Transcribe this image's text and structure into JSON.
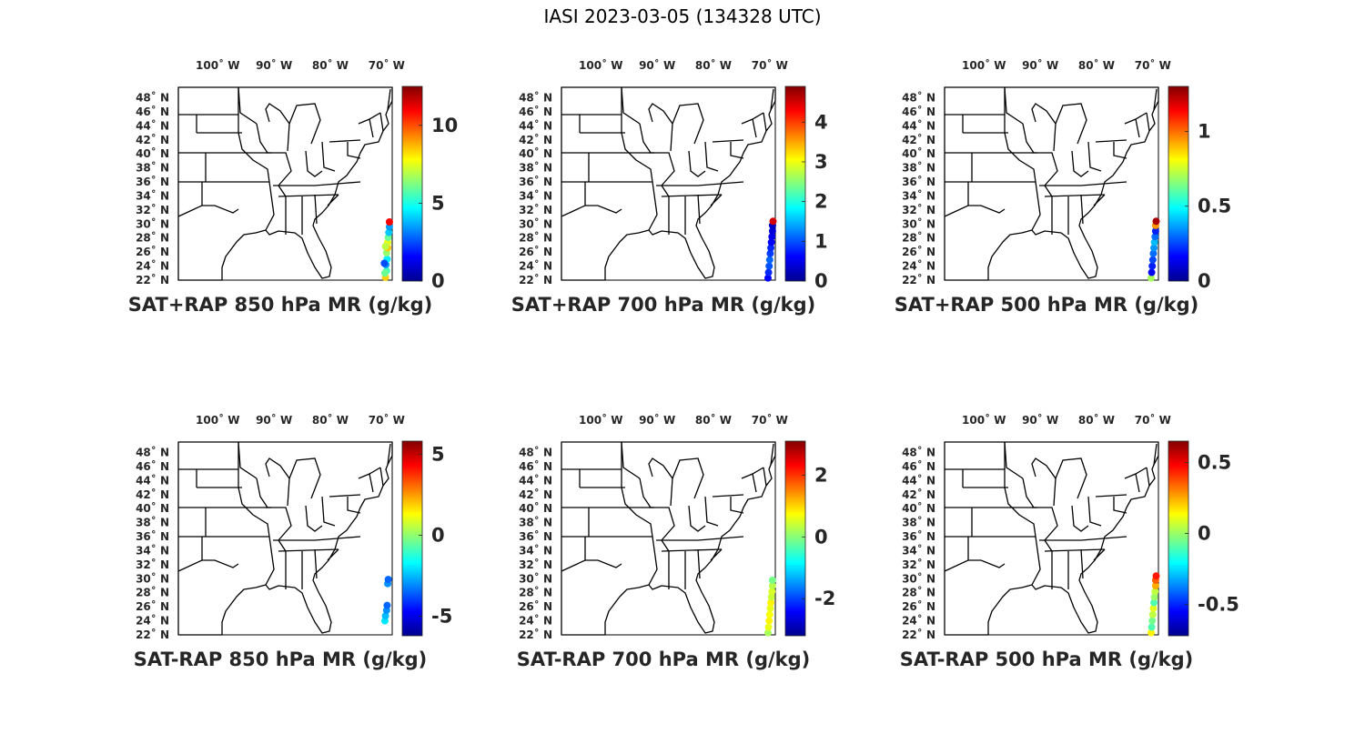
{
  "figure_title": "IASI 2023-03-05 (134328 UTC)",
  "lon_tick_labels": [
    "100˚ W",
    "90˚ W",
    "80˚ W",
    "70˚ W"
  ],
  "lat_tick_labels": [
    "48˚ N",
    "46˚ N",
    "44˚ N",
    "42˚ N",
    "40˚ N",
    "38˚ N",
    "36˚ N",
    "34˚ N",
    "32˚ N",
    "30˚ N",
    "28˚ N",
    "26˚ N",
    "24˚ N",
    "22˚ N"
  ],
  "colormap": "jet",
  "jet_colors": [
    "#00008f",
    "#0000ff",
    "#0080ff",
    "#00ffff",
    "#80ff80",
    "#ffff00",
    "#ff8000",
    "#ff0000",
    "#800000"
  ],
  "map_extent": {
    "lon": [
      -107,
      -69
    ],
    "lat": [
      22,
      49.5
    ]
  },
  "panels": [
    {
      "title": "SAT+RAP 850 hPa MR (g/kg)",
      "colorbar": {
        "clim": [
          0,
          12.5
        ],
        "tick_values": [
          0,
          5,
          10
        ],
        "tick_labels": [
          "0",
          "5",
          "10"
        ]
      },
      "points": [
        [
          -70.2,
          22.4,
          8.4
        ],
        [
          -70.0,
          23.3,
          5.5
        ],
        [
          -70.1,
          24.2,
          3.5
        ],
        [
          -69.9,
          25.0,
          4.5
        ],
        [
          -70.0,
          25.9,
          6.5
        ],
        [
          -69.8,
          26.6,
          8.5
        ],
        [
          -69.8,
          27.4,
          7.5
        ],
        [
          -69.7,
          28.1,
          6.0
        ],
        [
          -69.6,
          28.8,
          4.0
        ],
        [
          -69.5,
          29.6,
          3.5
        ],
        [
          -69.5,
          30.3,
          11.0
        ],
        [
          -70.3,
          23.0,
          6.0
        ],
        [
          -70.4,
          24.4,
          2.5
        ],
        [
          -70.2,
          26.8,
          7.0
        ]
      ]
    },
    {
      "title": "SAT+RAP 700 hPa MR (g/kg)",
      "colorbar": {
        "clim": [
          0,
          4.9
        ],
        "tick_values": [
          0,
          1,
          2,
          3,
          4
        ],
        "tick_labels": [
          "0",
          "1",
          "2",
          "3",
          "4"
        ]
      },
      "points": [
        [
          -70.3,
          22.3,
          0.6
        ],
        [
          -70.2,
          23.1,
          0.8
        ],
        [
          -70.1,
          24.0,
          1.0
        ],
        [
          -70.0,
          24.9,
          1.1
        ],
        [
          -69.9,
          25.8,
          0.9
        ],
        [
          -69.8,
          26.6,
          0.8
        ],
        [
          -69.7,
          27.4,
          0.6
        ],
        [
          -69.6,
          28.2,
          0.5
        ],
        [
          -69.5,
          29.0,
          0.4
        ],
        [
          -69.5,
          29.8,
          0.3
        ],
        [
          -69.4,
          30.4,
          4.5
        ]
      ]
    },
    {
      "title": "SAT+RAP 500 hPa MR (g/kg)",
      "colorbar": {
        "clim": [
          0,
          1.3
        ],
        "tick_values": [
          0,
          0.5,
          1
        ],
        "tick_labels": [
          "0",
          "0.5",
          "1"
        ]
      },
      "points": [
        [
          -70.3,
          22.3,
          0.7
        ],
        [
          -70.2,
          23.1,
          0.15
        ],
        [
          -70.1,
          24.0,
          0.2
        ],
        [
          -70.0,
          24.9,
          0.25
        ],
        [
          -69.9,
          25.8,
          0.3
        ],
        [
          -69.8,
          26.6,
          0.35
        ],
        [
          -69.7,
          27.4,
          0.4
        ],
        [
          -69.6,
          28.2,
          0.3
        ],
        [
          -69.5,
          29.0,
          0.2
        ],
        [
          -69.5,
          29.8,
          0.95
        ],
        [
          -69.4,
          30.4,
          1.25
        ]
      ]
    },
    {
      "title": "SAT-RAP 850 hPa MR (g/kg)",
      "colorbar": {
        "clim": [
          -6.2,
          5.8
        ],
        "tick_values": [
          -5,
          0,
          5
        ],
        "tick_labels": [
          "-5",
          "0",
          "5"
        ]
      },
      "points": [
        [
          -70.3,
          24.0,
          -2.0
        ],
        [
          -70.2,
          24.7,
          -2.5
        ],
        [
          -70.0,
          25.5,
          -3.0
        ],
        [
          -69.9,
          26.2,
          -3.5
        ],
        [
          -69.8,
          29.3,
          -3.0
        ],
        [
          -69.7,
          29.9,
          -3.5
        ]
      ]
    },
    {
      "title": "SAT-RAP 700 hPa MR (g/kg)",
      "colorbar": {
        "clim": [
          -3.2,
          3.1
        ],
        "tick_values": [
          -2,
          0,
          2
        ],
        "tick_labels": [
          "-2",
          "0",
          "2"
        ]
      },
      "points": [
        [
          -70.3,
          22.3,
          0.2
        ],
        [
          -70.2,
          23.1,
          0.6
        ],
        [
          -70.1,
          24.0,
          0.8
        ],
        [
          -70.0,
          24.9,
          0.7
        ],
        [
          -69.9,
          25.8,
          0.6
        ],
        [
          -69.8,
          26.6,
          0.8
        ],
        [
          -69.7,
          27.4,
          0.4
        ],
        [
          -69.6,
          28.2,
          0.5
        ],
        [
          -69.5,
          29.0,
          0.3
        ],
        [
          -69.5,
          29.8,
          -0.1
        ]
      ]
    },
    {
      "title": "SAT-RAP 500 hPa MR (g/kg)",
      "colorbar": {
        "clim": [
          -0.72,
          0.65
        ],
        "tick_values": [
          -0.5,
          0,
          0.5
        ],
        "tick_labels": [
          "-0.5",
          "0",
          "0.5"
        ]
      },
      "points": [
        [
          -70.3,
          22.3,
          0.15
        ],
        [
          -70.2,
          23.1,
          -0.1
        ],
        [
          -70.1,
          24.0,
          -0.05
        ],
        [
          -70.0,
          24.9,
          0.05
        ],
        [
          -69.9,
          25.8,
          0.1
        ],
        [
          -69.8,
          26.6,
          -0.1
        ],
        [
          -69.7,
          27.4,
          0.0
        ],
        [
          -69.6,
          28.2,
          0.05
        ],
        [
          -69.5,
          29.0,
          0.25
        ],
        [
          -69.5,
          29.8,
          0.35
        ],
        [
          -69.4,
          30.4,
          0.45
        ]
      ]
    }
  ]
}
